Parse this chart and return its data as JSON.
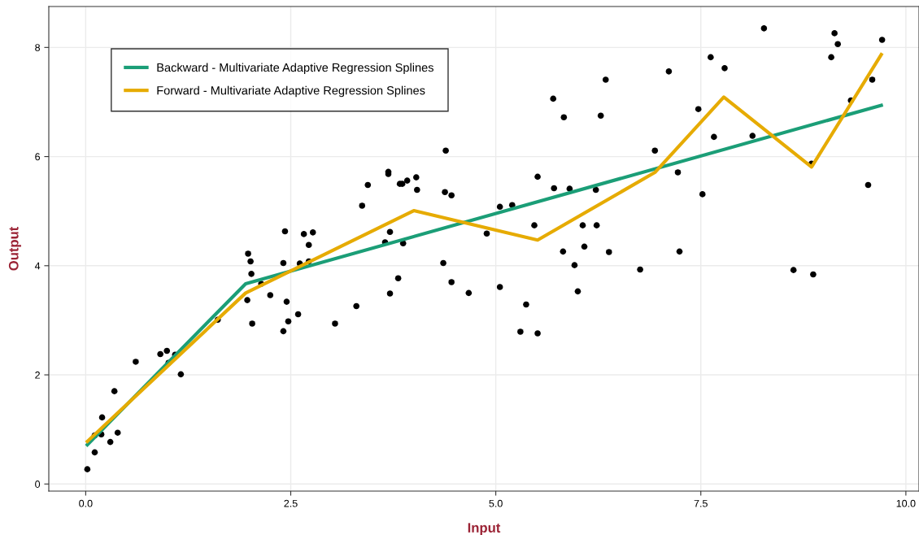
{
  "chart_data": {
    "type": "scatter",
    "xlabel": "Input",
    "ylabel": "Output",
    "xlim": [
      -0.45,
      10.16
    ],
    "ylim": [
      -0.13,
      8.75
    ],
    "xticks": [
      {
        "value": 0,
        "label": "0.0"
      },
      {
        "value": 2.5,
        "label": "2.5"
      },
      {
        "value": 5,
        "label": "5.0"
      },
      {
        "value": 7.5,
        "label": "7.5"
      },
      {
        "value": 10,
        "label": "10.0"
      }
    ],
    "yticks": [
      0,
      2,
      4,
      6,
      8
    ],
    "grid": true,
    "legend": "top left",
    "series": [
      {
        "color": "#000000",
        "marker": "circle",
        "x": [
          0.02,
          0.11,
          0.11,
          0.2,
          0.19,
          0.3,
          0.35,
          0.39,
          0.61,
          0.91,
          0.99,
          1.01,
          1.09,
          1.16,
          1.61,
          1.98,
          2.01,
          2.02,
          1.97,
          2.03,
          2.14,
          2.25,
          2.41,
          2.43,
          2.45,
          2.47,
          2.41,
          2.61,
          2.59,
          2.66,
          2.77,
          2.72,
          2.72,
          3.04,
          3.3,
          3.37,
          3.44,
          3.69,
          3.69,
          3.65,
          3.71,
          3.87,
          3.71,
          3.81,
          3.83,
          3.86,
          3.92,
          4.03,
          4.04,
          4.39,
          4.38,
          4.46,
          4.36,
          4.46,
          4.67,
          4.89,
          5.05,
          5.2,
          5.05,
          5.3,
          5.37,
          5.51,
          5.47,
          5.51,
          5.7,
          5.83,
          5.71,
          5.9,
          5.82,
          5.96,
          6.06,
          6.08,
          6.0,
          6.22,
          6.23,
          6.34,
          6.28,
          6.38,
          6.76,
          6.94,
          7.11,
          7.22,
          7.24,
          7.47,
          7.52,
          7.62,
          7.79,
          7.66,
          8.13,
          8.27,
          8.63,
          8.85,
          8.87,
          9.09,
          9.13,
          9.17,
          9.33,
          9.59,
          9.54,
          9.71
        ],
        "values": [
          0.27,
          0.58,
          0.89,
          1.22,
          0.91,
          0.77,
          1.7,
          0.94,
          2.24,
          2.38,
          2.44,
          2.22,
          2.37,
          2.01,
          3.01,
          4.22,
          4.08,
          3.85,
          3.37,
          2.94,
          3.67,
          3.46,
          4.05,
          4.63,
          3.34,
          2.98,
          2.8,
          4.04,
          3.11,
          4.58,
          4.61,
          4.38,
          4.08,
          2.94,
          3.26,
          5.1,
          5.48,
          5.72,
          5.68,
          4.43,
          4.62,
          4.41,
          3.49,
          3.77,
          5.5,
          5.5,
          5.56,
          5.62,
          5.39,
          6.11,
          5.35,
          5.29,
          4.05,
          3.7,
          3.5,
          4.59,
          5.08,
          5.11,
          3.61,
          2.79,
          3.29,
          2.76,
          4.74,
          5.63,
          7.06,
          6.72,
          5.42,
          5.41,
          4.26,
          4.01,
          4.74,
          4.35,
          3.53,
          5.39,
          4.74,
          7.41,
          6.75,
          4.25,
          3.93,
          6.11,
          7.56,
          5.71,
          4.26,
          6.87,
          5.31,
          7.82,
          7.62,
          6.36,
          6.38,
          8.35,
          3.92,
          5.87,
          3.84,
          7.82,
          8.26,
          8.06,
          7.03,
          7.41,
          5.48,
          8.14
        ]
      },
      {
        "type": "line",
        "name": "Backward - Multivariate Adaptive Regression Splines",
        "color": "#1b9e77",
        "marker": "none",
        "x": [
          0.02,
          1.95,
          9.7
        ],
        "values": [
          0.72,
          3.67,
          6.94
        ]
      },
      {
        "type": "line",
        "name": "Forward - Multivariate Adaptive Regression Splines",
        "color": "#e6ab02",
        "marker": "none",
        "x": [
          0.02,
          1.95,
          4.0,
          5.51,
          6.94,
          7.78,
          8.85,
          9.7
        ],
        "values": [
          0.78,
          3.5,
          5.01,
          4.47,
          5.71,
          7.09,
          5.81,
          7.87
        ]
      }
    ]
  }
}
